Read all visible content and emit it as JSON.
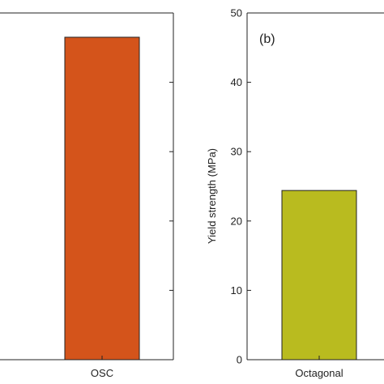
{
  "chart_data": [
    {
      "type": "bar",
      "categories": [
        "OSC"
      ],
      "values": [
        46.5
      ],
      "colors": [
        "#d4541b"
      ],
      "title": "",
      "xlabel": "",
      "ylabel": "",
      "ylim": [
        0,
        50
      ],
      "yticks": [
        10,
        20,
        30,
        40
      ],
      "grid": false,
      "legend": "none"
    },
    {
      "type": "bar",
      "panel_tag": "(b)",
      "categories": [
        "Octagonal"
      ],
      "values": [
        24.4
      ],
      "colors": [
        "#b9bb1f"
      ],
      "title": "",
      "xlabel": "",
      "ylabel": "Yield strength (MPa)",
      "ylim": [
        0,
        50
      ],
      "yticks": [
        "0",
        "10",
        "20",
        "30",
        "40",
        "50"
      ],
      "grid": false,
      "legend": "none"
    }
  ]
}
